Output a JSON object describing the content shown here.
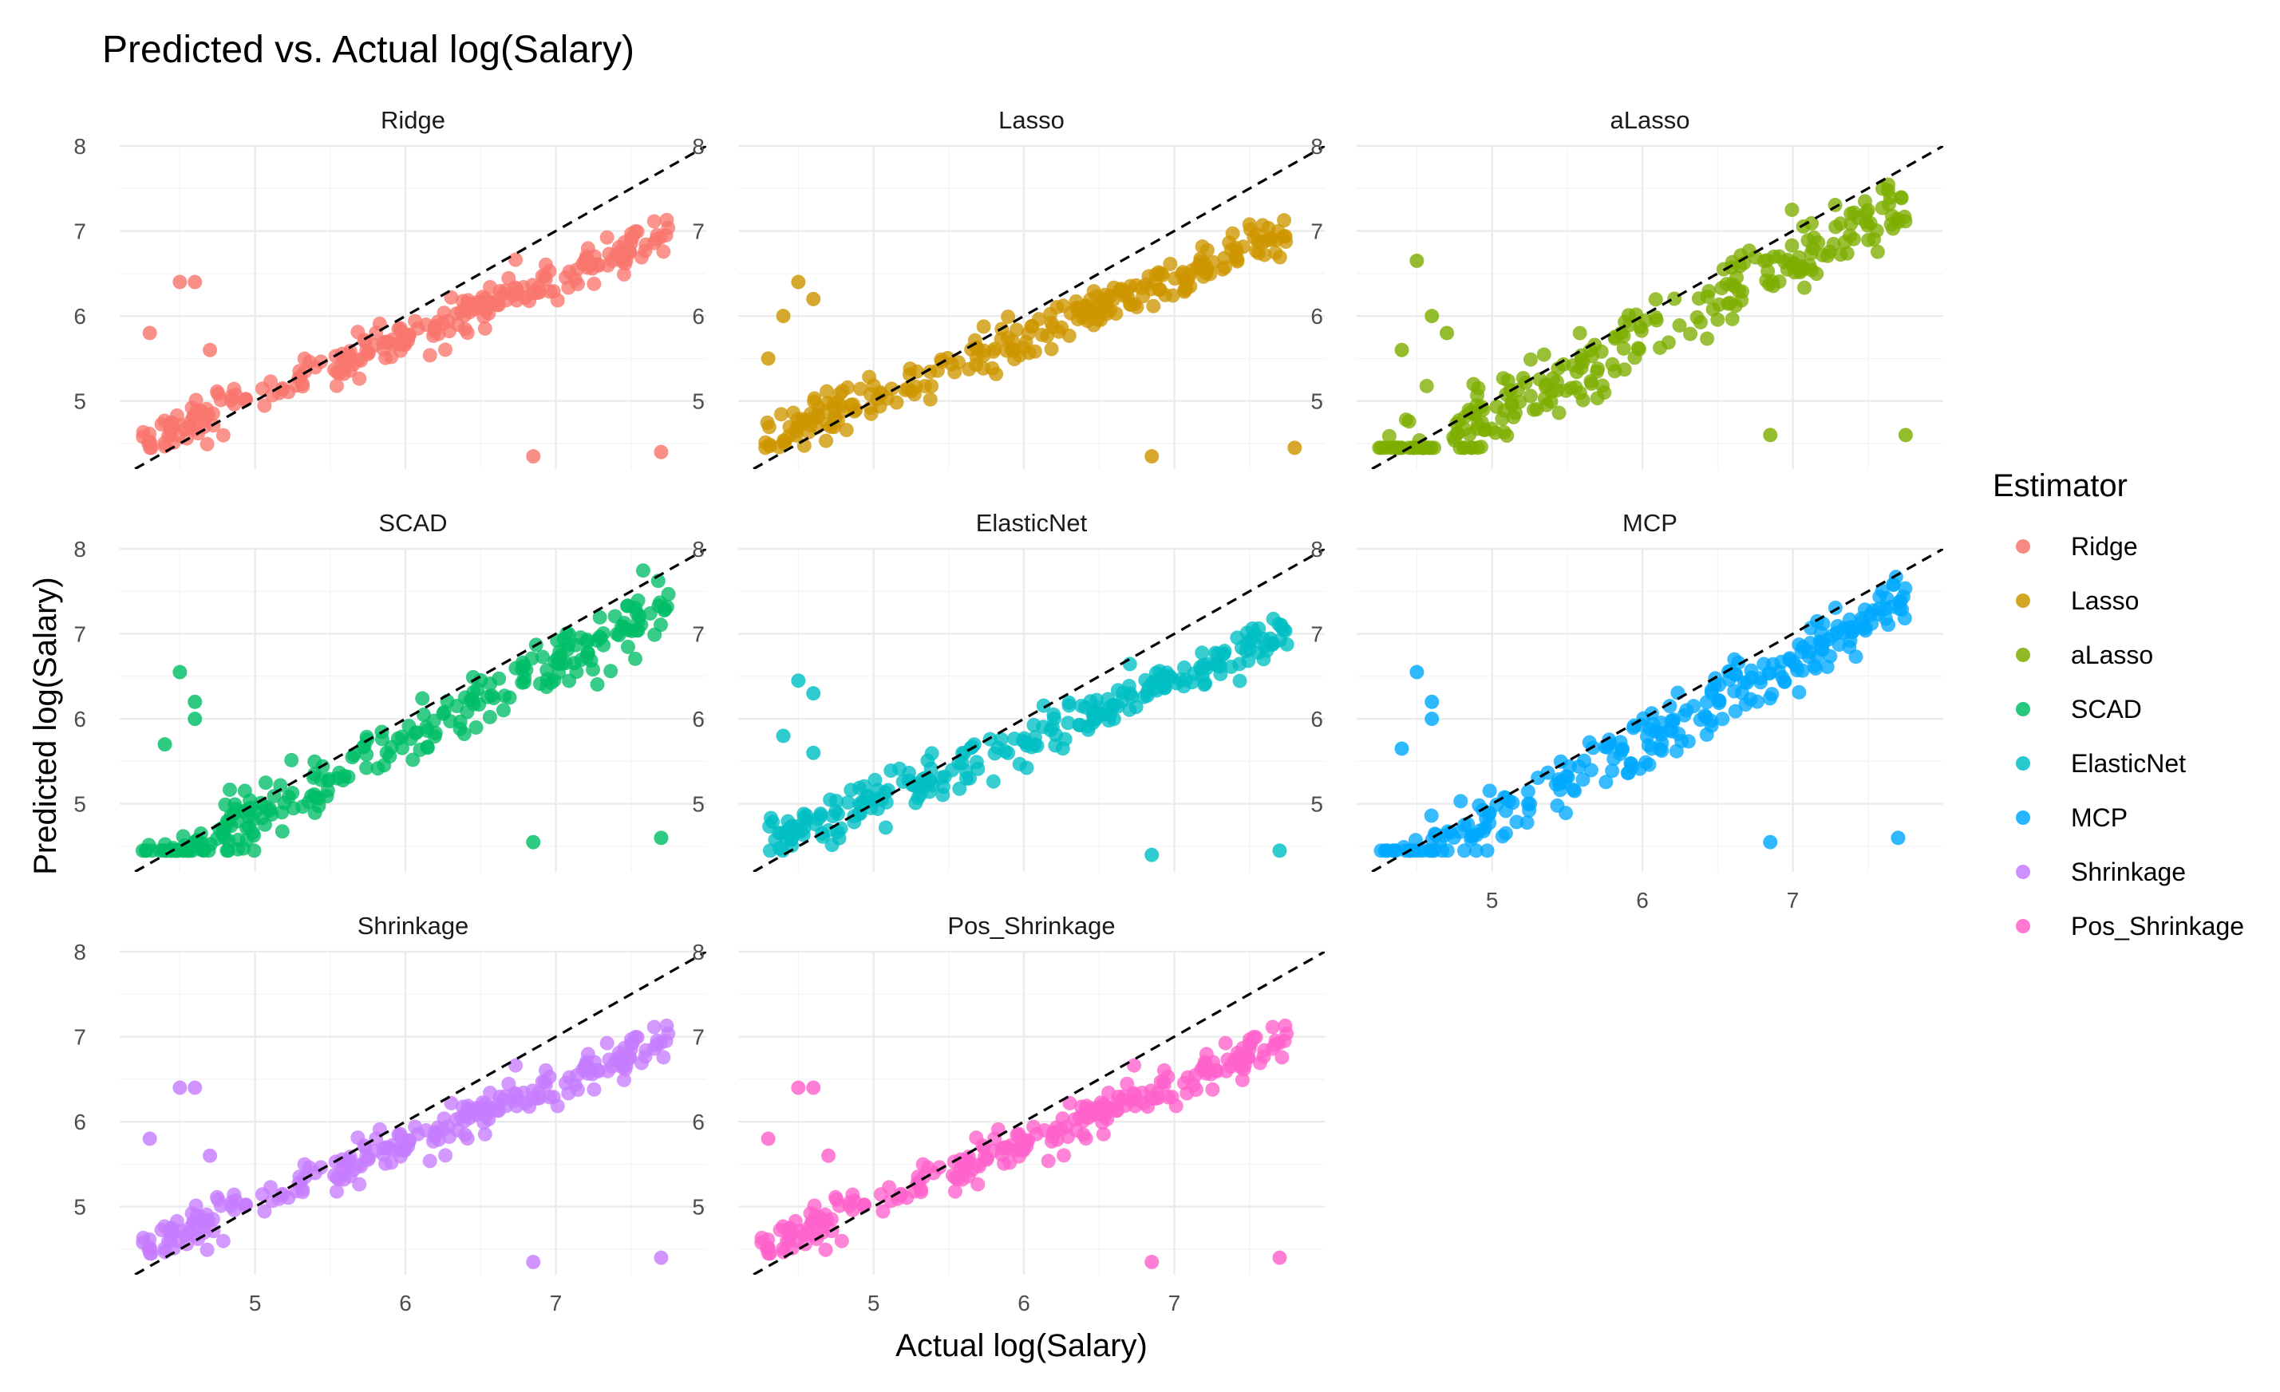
{
  "chart_data": {
    "type": "scatter",
    "title": "Predicted vs. Actual log(Salary)",
    "xlabel": "Actual log(Salary)",
    "ylabel": "Predicted log(Salary)",
    "xlim": [
      4.1,
      8.0
    ],
    "ylim": [
      4.2,
      8.0
    ],
    "x_ticks": [
      5,
      6,
      7
    ],
    "y_ticks": [
      5,
      6,
      7,
      8
    ],
    "grid": true,
    "reference_line": "y = x (dashed)",
    "legend": {
      "title": "Estimator",
      "position": "right"
    },
    "panels": [
      {
        "name": "Ridge",
        "color": "#F8766D",
        "spread": 0.55,
        "outliers": [
          [
            6.85,
            4.35
          ],
          [
            7.7,
            4.4
          ],
          [
            4.5,
            6.4
          ],
          [
            4.6,
            6.4
          ],
          [
            4.3,
            5.8
          ],
          [
            4.7,
            5.6
          ]
        ]
      },
      {
        "name": "Lasso",
        "color": "#CD9600",
        "spread": 0.55,
        "outliers": [
          [
            6.85,
            4.35
          ],
          [
            7.8,
            4.45
          ],
          [
            4.5,
            6.4
          ],
          [
            4.6,
            6.2
          ],
          [
            4.4,
            6.0
          ],
          [
            4.3,
            5.5
          ]
        ]
      },
      {
        "name": "aLasso",
        "color": "#7CAE00",
        "spread": 0.95,
        "outliers": [
          [
            6.85,
            4.6
          ],
          [
            7.75,
            4.6
          ],
          [
            4.5,
            6.65
          ],
          [
            4.6,
            6.0
          ],
          [
            4.7,
            5.8
          ],
          [
            4.4,
            5.6
          ]
        ]
      },
      {
        "name": "SCAD",
        "color": "#00BE67",
        "spread": 0.8,
        "outliers": [
          [
            6.85,
            4.55
          ],
          [
            7.7,
            4.6
          ],
          [
            4.5,
            6.55
          ],
          [
            4.6,
            6.2
          ],
          [
            4.6,
            6.0
          ],
          [
            4.4,
            5.7
          ]
        ]
      },
      {
        "name": "ElasticNet",
        "color": "#00BFC4",
        "spread": 0.6,
        "outliers": [
          [
            6.85,
            4.4
          ],
          [
            7.7,
            4.45
          ],
          [
            4.5,
            6.45
          ],
          [
            4.6,
            6.3
          ],
          [
            4.4,
            5.8
          ],
          [
            4.6,
            5.6
          ]
        ]
      },
      {
        "name": "MCP",
        "color": "#00A9FF",
        "spread": 0.8,
        "outliers": [
          [
            6.85,
            4.55
          ],
          [
            7.7,
            4.6
          ],
          [
            4.5,
            6.55
          ],
          [
            4.6,
            6.2
          ],
          [
            4.6,
            6.0
          ],
          [
            4.4,
            5.65
          ]
        ]
      },
      {
        "name": "Shrinkage",
        "color": "#C77CFF",
        "spread": 0.55,
        "outliers": [
          [
            6.85,
            4.35
          ],
          [
            7.7,
            4.4
          ],
          [
            4.5,
            6.4
          ],
          [
            4.6,
            6.4
          ],
          [
            4.3,
            5.8
          ],
          [
            4.7,
            5.6
          ]
        ]
      },
      {
        "name": "Pos_Shrinkage",
        "color": "#FF61CC",
        "spread": 0.55,
        "outliers": [
          [
            6.85,
            4.35
          ],
          [
            7.7,
            4.4
          ],
          [
            4.5,
            6.4
          ],
          [
            4.6,
            6.4
          ],
          [
            4.3,
            5.8
          ],
          [
            4.7,
            5.6
          ]
        ]
      }
    ]
  }
}
